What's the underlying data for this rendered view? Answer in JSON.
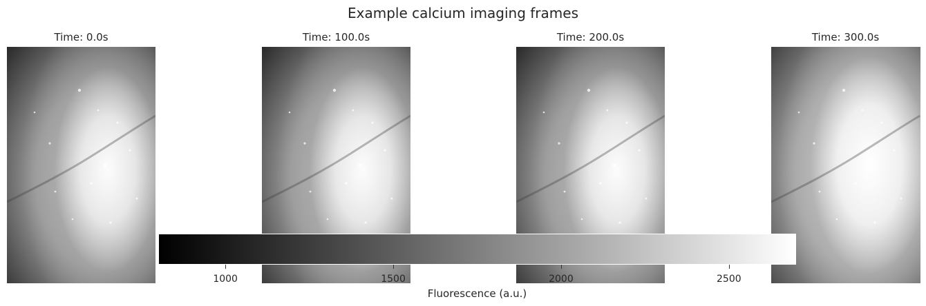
{
  "figure": {
    "title": "Example calcium imaging frames",
    "panels": [
      {
        "title": "Time: 0.0s"
      },
      {
        "title": "Time: 100.0s"
      },
      {
        "title": "Time: 200.0s"
      },
      {
        "title": "Time: 300.0s"
      }
    ],
    "colormap": "gray",
    "colorbar": {
      "label": "Fluorescence (a.u.)",
      "range": [
        800,
        2700
      ],
      "ticks": [
        {
          "value": 1000,
          "label": "1000"
        },
        {
          "value": 1500,
          "label": "1500"
        },
        {
          "value": 2000,
          "label": "2000"
        },
        {
          "value": 2500,
          "label": "2500"
        }
      ]
    }
  }
}
